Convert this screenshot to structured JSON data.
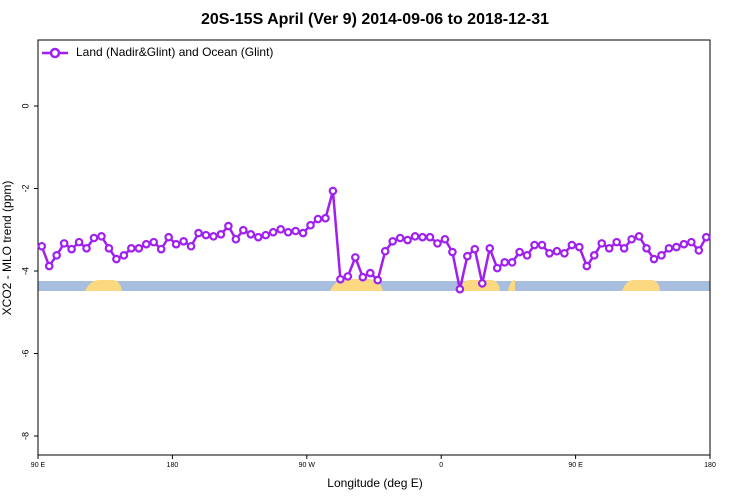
{
  "chart_data": {
    "type": "line",
    "title": "20S-15S April (Ver 9)   2014-09-06 to 2018-12-31",
    "x_label": "Longitude (deg E)",
    "y_label": "XCO2 - MLO trend (ppm)",
    "xlim": [
      90,
      540
    ],
    "ylim": [
      -8.46,
      1.6
    ],
    "xticks": [
      {
        "value": 90,
        "label": "90 E"
      },
      180,
      {
        "value": 270,
        "label": "90 W"
      },
      {
        "value": 360,
        "label": "0"
      },
      {
        "value": 450,
        "label": "90 E"
      },
      {
        "value": 540,
        "label": "180"
      }
    ],
    "yticks": [
      0,
      -2,
      -4,
      -6,
      -8
    ],
    "legend_position": "top-left",
    "series": [
      {
        "name": "Land (Nadir&Glint) and Ocean (Glint)",
        "color": "#a020f0",
        "x": [
          92.5,
          97.5,
          102.5,
          107.5,
          112.5,
          117.5,
          122.5,
          127.5,
          132.5,
          137.5,
          142.5,
          147.5,
          152.5,
          157.5,
          162.5,
          167.5,
          172.5,
          177.5,
          182.5,
          187.5,
          192.5,
          197.5,
          202.5,
          207.5,
          212.5,
          217.5,
          222.5,
          227.5,
          232.5,
          237.5,
          242.5,
          247.5,
          252.5,
          257.5,
          262.5,
          267.5,
          272.5,
          277.5,
          282.5,
          287.5,
          292.5,
          297.5,
          302.5,
          307.5,
          312.5,
          317.5,
          322.5,
          327.5,
          332.5,
          337.5,
          342.5,
          347.5,
          352.5,
          357.5,
          362.5,
          367.5,
          372.5,
          377.5,
          382.5,
          387.5,
          392.5,
          397.5,
          402.5,
          407.5,
          412.5,
          417.5,
          422.5,
          427.5,
          432.5,
          437.5,
          442.5,
          447.5,
          452.5,
          457.5,
          462.5,
          467.5,
          472.5,
          477.5,
          482.5,
          487.5,
          492.5,
          497.5,
          502.5,
          507.5,
          512.5,
          517.5,
          522.5,
          527.5,
          532.5,
          537.5
        ],
        "values": [
          -3.4,
          -3.88,
          -3.62,
          -3.33,
          -3.47,
          -3.3,
          -3.45,
          -3.2,
          -3.16,
          -3.45,
          -3.71,
          -3.62,
          -3.45,
          -3.45,
          -3.35,
          -3.3,
          -3.47,
          -3.18,
          -3.35,
          -3.28,
          -3.4,
          -3.08,
          -3.13,
          -3.16,
          -3.11,
          -2.91,
          -3.23,
          -3.01,
          -3.11,
          -3.18,
          -3.13,
          -3.06,
          -2.99,
          -3.06,
          -3.03,
          -3.08,
          -2.89,
          -2.74,
          -2.72,
          -2.06,
          -4.2,
          -4.13,
          -3.67,
          -4.15,
          -4.05,
          -4.22,
          -3.52,
          -3.28,
          -3.2,
          -3.25,
          -3.16,
          -3.18,
          -3.18,
          -3.33,
          -3.23,
          -3.54,
          -4.44,
          -3.64,
          -3.47,
          -4.3,
          -3.45,
          -3.93,
          -3.79,
          -3.79,
          -3.54,
          -3.62,
          -3.37,
          -3.37,
          -3.57,
          -3.52,
          -3.57,
          -3.37,
          -3.42,
          -3.88,
          -3.62,
          -3.33,
          -3.45,
          -3.3,
          -3.45,
          -3.23,
          -3.16,
          -3.45,
          -3.71,
          -3.62,
          -3.45,
          -3.42,
          -3.35,
          -3.3,
          -3.5,
          -3.18
        ]
      }
    ]
  }
}
